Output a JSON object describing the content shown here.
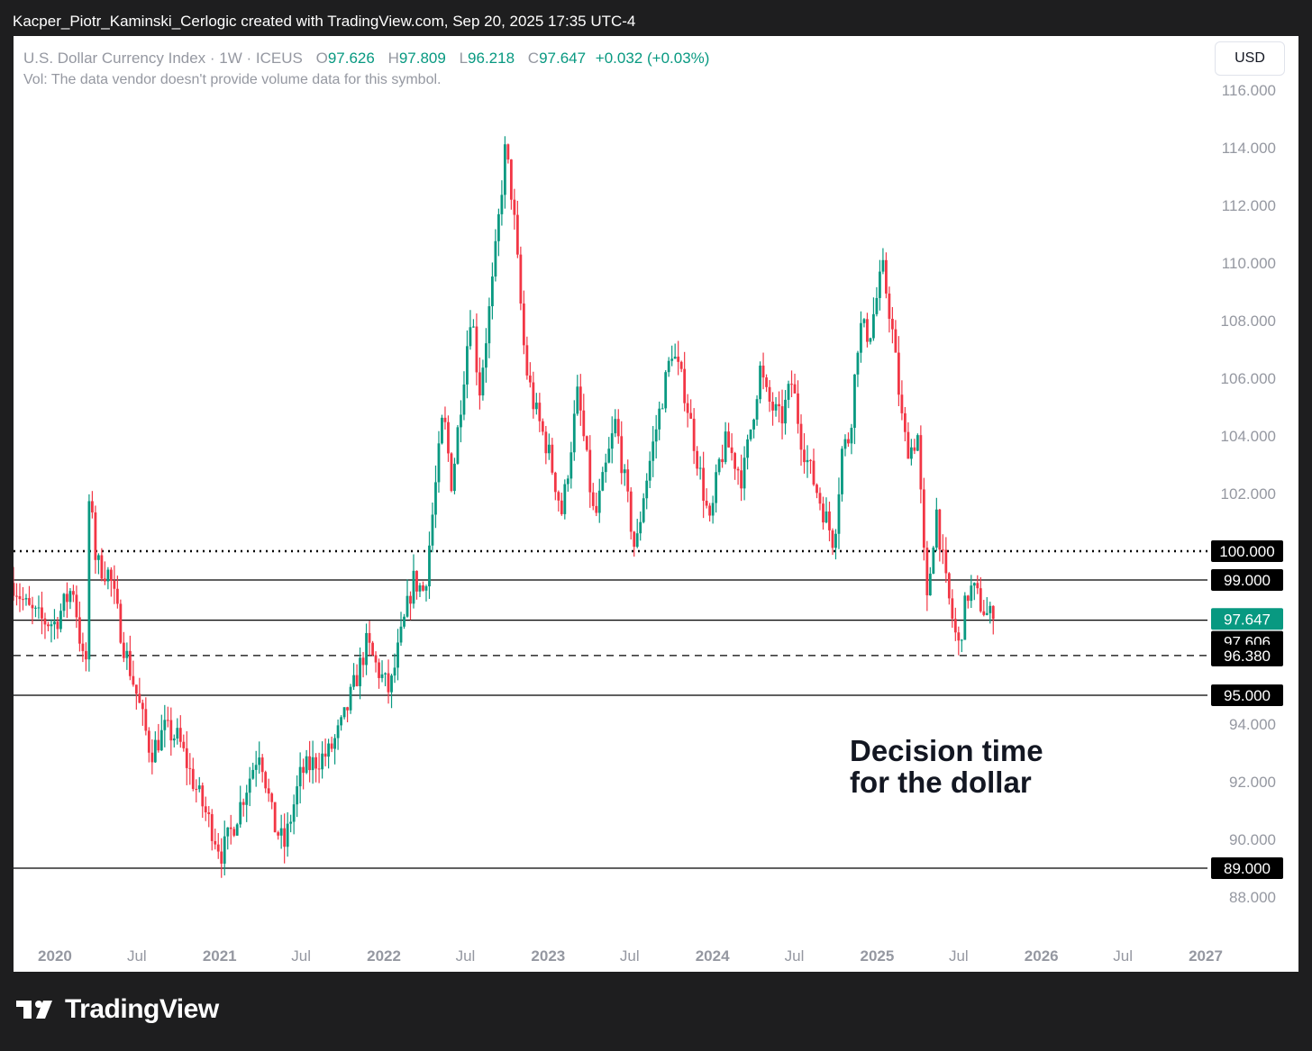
{
  "header": {
    "text": "Kacper_Piotr_Kaminski_Cerlogic created with TradingView.com, Sep 20, 2025 17:35 UTC-4"
  },
  "legend": {
    "symbol": "U.S. Dollar Currency Index · 1W · ICEUS",
    "open_label": "O",
    "open": "97.626",
    "high_label": "H",
    "high": "97.809",
    "low_label": "L",
    "low": "96.218",
    "close_label": "C",
    "close": "97.647",
    "change": "+0.032 (+0.03%)",
    "volume_note": "Vol: The data vendor doesn't provide volume data for this symbol."
  },
  "currency_button": {
    "label": "USD"
  },
  "annotation": {
    "text": "Decision time\nfor the dollar"
  },
  "footer": {
    "brand": "TradingView",
    "logo_icon": "tradingview-logo-icon"
  },
  "colors": {
    "up": "#089981",
    "down": "#f23645",
    "background": "#ffffff",
    "frame": "#1e1e1f",
    "axis_text": "#9598a1"
  },
  "chart_data": {
    "type": "candlestick",
    "title": "U.S. Dollar Currency Index · 1W · ICEUS",
    "ylim": [
      87.0,
      118.0
    ],
    "xlim": [
      "2019-10-01",
      "2027-01-15"
    ],
    "grid": false,
    "y_ticks": [
      "88.000",
      "90.000",
      "92.000",
      "94.000",
      "102.000",
      "104.000",
      "106.000",
      "108.000",
      "110.000",
      "112.000",
      "114.000",
      "116.000"
    ],
    "x_ticks": [
      {
        "label": "2020",
        "date": "2020-01-01",
        "bold": true
      },
      {
        "label": "Jul",
        "date": "2020-07-01",
        "bold": false
      },
      {
        "label": "2021",
        "date": "2021-01-01",
        "bold": true
      },
      {
        "label": "Jul",
        "date": "2021-07-01",
        "bold": false
      },
      {
        "label": "2022",
        "date": "2022-01-01",
        "bold": true
      },
      {
        "label": "Jul",
        "date": "2022-07-01",
        "bold": false
      },
      {
        "label": "2023",
        "date": "2023-01-01",
        "bold": true
      },
      {
        "label": "Jul",
        "date": "2023-07-01",
        "bold": false
      },
      {
        "label": "2024",
        "date": "2024-01-01",
        "bold": true
      },
      {
        "label": "Jul",
        "date": "2024-07-01",
        "bold": false
      },
      {
        "label": "2025",
        "date": "2025-01-01",
        "bold": true
      },
      {
        "label": "Jul",
        "date": "2025-07-01",
        "bold": false
      },
      {
        "label": "2026",
        "date": "2026-01-01",
        "bold": true
      },
      {
        "label": "Jul",
        "date": "2026-07-01",
        "bold": false
      },
      {
        "label": "2027",
        "date": "2027-01-01",
        "bold": true
      }
    ],
    "horizontal_levels": [
      {
        "value": 100.0,
        "label": "100.000",
        "style": "dotted",
        "label_bg": "#000000",
        "label_color": "#ffffff"
      },
      {
        "value": 99.0,
        "label": "99.000",
        "style": "solid",
        "label_bg": "#000000",
        "label_color": "#ffffff"
      },
      {
        "value": 97.606,
        "label": "97.606",
        "style": "solid",
        "label_bg": "#000000",
        "label_color": "#ffffff"
      },
      {
        "value": 96.38,
        "label": "96.380",
        "style": "dashed",
        "label_bg": "#000000",
        "label_color": "#ffffff"
      },
      {
        "value": 95.0,
        "label": "95.000",
        "style": "solid",
        "label_bg": "#000000",
        "label_color": "#ffffff"
      },
      {
        "value": 89.0,
        "label": "89.000",
        "style": "solid",
        "label_bg": "#000000",
        "label_color": "#ffffff"
      }
    ],
    "last_price": {
      "value": 97.647,
      "label": "97.647",
      "label_bg": "#089981",
      "label_color": "#ffffff"
    },
    "close_path": [
      [
        "2019-10-01",
        98.9
      ],
      [
        "2019-11-01",
        98.0
      ],
      [
        "2019-12-01",
        97.6
      ],
      [
        "2020-01-01",
        97.5
      ],
      [
        "2020-02-10",
        98.8
      ],
      [
        "2020-03-09",
        95.5
      ],
      [
        "2020-03-19",
        102.8
      ],
      [
        "2020-04-01",
        99.6
      ],
      [
        "2020-05-01",
        99.2
      ],
      [
        "2020-06-01",
        96.8
      ],
      [
        "2020-07-01",
        95.0
      ],
      [
        "2020-08-01",
        93.0
      ],
      [
        "2020-09-01",
        93.8
      ],
      [
        "2020-10-01",
        93.5
      ],
      [
        "2020-11-01",
        92.1
      ],
      [
        "2021-01-06",
        89.5
      ],
      [
        "2021-02-01",
        90.5
      ],
      [
        "2021-03-31",
        93.2
      ],
      [
        "2021-05-01",
        90.5
      ],
      [
        "2021-05-25",
        89.8
      ],
      [
        "2021-07-01",
        92.3
      ],
      [
        "2021-08-01",
        92.7
      ],
      [
        "2021-09-01",
        93.0
      ],
      [
        "2021-10-01",
        94.0
      ],
      [
        "2021-11-24",
        96.8
      ],
      [
        "2021-12-15",
        96.0
      ],
      [
        "2022-01-14",
        95.1
      ],
      [
        "2022-02-01",
        96.5
      ],
      [
        "2022-03-07",
        99.0
      ],
      [
        "2022-04-01",
        98.6
      ],
      [
        "2022-05-13",
        104.8
      ],
      [
        "2022-06-01",
        102.3
      ],
      [
        "2022-07-14",
        108.5
      ],
      [
        "2022-08-01",
        105.5
      ],
      [
        "2022-09-01",
        109.5
      ],
      [
        "2022-09-28",
        114.0
      ],
      [
        "2022-10-15",
        112.0
      ],
      [
        "2022-11-11",
        106.5
      ],
      [
        "2022-12-01",
        105.0
      ],
      [
        "2023-01-01",
        103.5
      ],
      [
        "2023-02-01",
        101.3
      ],
      [
        "2023-03-08",
        105.5
      ],
      [
        "2023-04-14",
        101.0
      ],
      [
        "2023-05-31",
        104.5
      ],
      [
        "2023-07-14",
        99.9
      ],
      [
        "2023-08-01",
        102.0
      ],
      [
        "2023-09-01",
        104.5
      ],
      [
        "2023-10-03",
        107.0
      ],
      [
        "2023-11-01",
        105.5
      ],
      [
        "2023-12-27",
        100.8
      ],
      [
        "2024-01-15",
        103.0
      ],
      [
        "2024-02-01",
        103.8
      ],
      [
        "2024-03-08",
        102.5
      ],
      [
        "2024-04-16",
        106.3
      ],
      [
        "2024-05-01",
        105.3
      ],
      [
        "2024-06-01",
        104.5
      ],
      [
        "2024-06-26",
        105.9
      ],
      [
        "2024-07-15",
        104.0
      ],
      [
        "2024-08-01",
        103.0
      ],
      [
        "2024-09-27",
        100.3
      ],
      [
        "2024-10-15",
        103.5
      ],
      [
        "2024-11-01",
        104.0
      ],
      [
        "2024-11-22",
        107.8
      ],
      [
        "2024-12-15",
        107.5
      ],
      [
        "2025-01-13",
        109.8
      ],
      [
        "2025-02-01",
        108.0
      ],
      [
        "2025-03-01",
        104.0
      ],
      [
        "2025-03-15",
        103.5
      ],
      [
        "2025-04-01",
        104.0
      ],
      [
        "2025-04-21",
        98.0
      ],
      [
        "2025-05-12",
        101.5
      ],
      [
        "2025-06-01",
        99.0
      ],
      [
        "2025-06-30",
        96.6
      ],
      [
        "2025-07-20",
        98.5
      ],
      [
        "2025-08-01",
        98.7
      ],
      [
        "2025-09-01",
        97.8
      ],
      [
        "2025-09-19",
        97.647
      ]
    ]
  }
}
